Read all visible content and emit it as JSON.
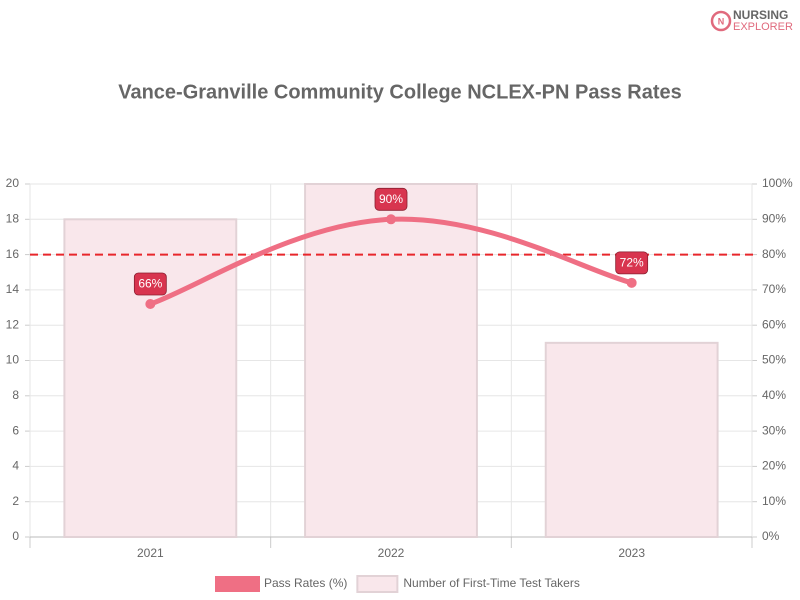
{
  "logo": {
    "line1": "NURSING",
    "line2": "EXPLORER"
  },
  "chart_data": {
    "type": "bar-line",
    "title": "Vance-Granville Community College NCLEX-PN Pass Rates",
    "categories": [
      "2021",
      "2022",
      "2023"
    ],
    "series": [
      {
        "name": "Pass Rates (%)",
        "type": "line",
        "axis": "y2",
        "color": "#ef6f84",
        "values": [
          66,
          90,
          72
        ],
        "value_labels": [
          "66%",
          "90%",
          "72%"
        ],
        "label_color": "#d8354f"
      },
      {
        "name": "Number of First-Time Test Takers",
        "type": "bar",
        "axis": "y",
        "color": "#f9e7eb",
        "border": "#e2d2d6",
        "values": [
          18,
          20,
          11
        ]
      }
    ],
    "ylim": [
      0,
      20
    ],
    "yticks": [
      0,
      2,
      4,
      6,
      8,
      10,
      12,
      14,
      16,
      18,
      20
    ],
    "y2lim": [
      0,
      100
    ],
    "y2ticks": [
      {
        "value": 0,
        "label": "0%"
      },
      {
        "value": 10,
        "label": "10%"
      },
      {
        "value": 20,
        "label": "20%"
      },
      {
        "value": 30,
        "label": "30%"
      },
      {
        "value": 40,
        "label": "40%"
      },
      {
        "value": 50,
        "label": "50%"
      },
      {
        "value": 60,
        "label": "60%"
      },
      {
        "value": 70,
        "label": "70%"
      },
      {
        "value": 80,
        "label": "80%"
      },
      {
        "value": 90,
        "label": "90%"
      },
      {
        "value": 100,
        "label": "100%"
      }
    ],
    "reference_line": {
      "value": 80,
      "axis": "y2",
      "color": "#e8262b"
    },
    "grid": true
  }
}
